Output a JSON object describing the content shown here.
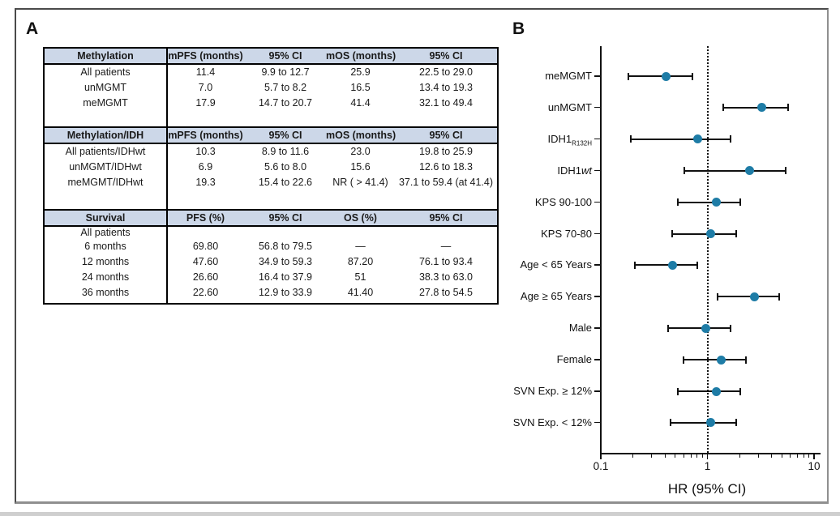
{
  "panels": {
    "a": {
      "label": "A"
    },
    "b": {
      "label": "B"
    }
  },
  "table": {
    "sections": [
      {
        "header": [
          "Methylation",
          "mPFS (months)",
          "95% CI",
          "mOS (months)",
          "95% CI"
        ],
        "rows": [
          [
            "All patients",
            "11.4",
            "9.9 to 12.7",
            "25.9",
            "22.5 to 29.0"
          ],
          [
            "unMGMT",
            "7.0",
            "5.7 to 8.2",
            "16.5",
            "13.4 to 19.3"
          ],
          [
            "meMGMT",
            "17.9",
            "14.7 to 20.7",
            "41.4",
            "32.1 to 49.4"
          ]
        ]
      },
      {
        "header": [
          "Methylation/IDH",
          "mPFS (months)",
          "95% CI",
          "mOS (months)",
          "95% CI"
        ],
        "rows": [
          [
            "All patients/IDHwt",
            "10.3",
            "8.9 to 11.6",
            "23.0",
            "19.8 to 25.9"
          ],
          [
            "unMGMT/IDHwt",
            "6.9",
            "5.6 to 8.0",
            "15.6",
            "12.6 to 18.3"
          ],
          [
            "meMGMT/IDHwt",
            "19.3",
            "15.4 to 22.6",
            "NR ( > 41.4)",
            "37.1 to 59.4 (at 41.4)"
          ]
        ]
      },
      {
        "header": [
          "Survival",
          "PFS (%)",
          "95% CI",
          "OS (%)",
          "95% CI"
        ],
        "label_row": "All patients",
        "rows": [
          [
            "6 months",
            "69.80",
            "56.8 to 79.5",
            "—",
            "—"
          ],
          [
            "12 months",
            "47.60",
            "34.9 to 59.3",
            "87.20",
            "76.1 to 93.4"
          ],
          [
            "24 months",
            "26.60",
            "16.4 to 37.9",
            "51",
            "38.3 to 63.0"
          ],
          [
            "36 months",
            "22.60",
            "12.9 to 33.9",
            "41.40",
            "27.8 to 54.5"
          ]
        ]
      }
    ]
  },
  "chart_data": {
    "type": "scatter",
    "subtype": "forest-plot",
    "title": "",
    "xlabel": "HR (95% CI)",
    "ylabel": "",
    "xscale": "log",
    "xlim": [
      0.1,
      10
    ],
    "x_major_ticks": [
      0.1,
      1,
      10
    ],
    "x_tick_labels": [
      "0.1",
      "1",
      "10"
    ],
    "x_minor_ticks": [
      0.2,
      0.3,
      0.4,
      0.5,
      0.6,
      0.7,
      0.8,
      0.9,
      2,
      3,
      4,
      5,
      6,
      7,
      8,
      9
    ],
    "reference_line": 1,
    "grid": false,
    "legend": "none",
    "marker_color": "#1e7ca6",
    "line_color": "#111111",
    "categories": [
      {
        "text": "meMGMT"
      },
      {
        "text": "unMGMT"
      },
      {
        "text": "IDH1",
        "sub": "R132H"
      },
      {
        "text": "IDH1",
        "italic": "wt"
      },
      {
        "text": "KPS 90-100"
      },
      {
        "text": "KPS 70-80"
      },
      {
        "text": "Age < 65 Years"
      },
      {
        "text": "Age ≥ 65 Years"
      },
      {
        "text": "Male"
      },
      {
        "text": "Female"
      },
      {
        "text": "SVN Exp. ≥ 12%"
      },
      {
        "text": "SVN Exp. < 12%"
      }
    ],
    "series": [
      {
        "name": "Hazard ratio (95% CI)",
        "values": [
          {
            "hr": 0.41,
            "lo": 0.18,
            "hi": 0.72
          },
          {
            "hr": 3.25,
            "lo": 1.4,
            "hi": 5.7
          },
          {
            "hr": 0.81,
            "lo": 0.19,
            "hi": 1.64
          },
          {
            "hr": 2.5,
            "lo": 0.61,
            "hi": 5.4
          },
          {
            "hr": 1.21,
            "lo": 0.53,
            "hi": 2.05
          },
          {
            "hr": 1.08,
            "lo": 0.47,
            "hi": 1.85
          },
          {
            "hr": 0.47,
            "lo": 0.21,
            "hi": 0.8
          },
          {
            "hr": 2.77,
            "lo": 1.24,
            "hi": 4.7
          },
          {
            "hr": 0.97,
            "lo": 0.43,
            "hi": 1.66
          },
          {
            "hr": 1.35,
            "lo": 0.6,
            "hi": 2.29
          },
          {
            "hr": 1.21,
            "lo": 0.53,
            "hi": 2.02
          },
          {
            "hr": 1.08,
            "lo": 0.45,
            "hi": 1.85
          }
        ]
      }
    ]
  },
  "colors": {
    "header_bg": "#ccd7e8",
    "marker": "#1e7ca6",
    "border": "#000000",
    "frame": "#4a4a4a"
  }
}
